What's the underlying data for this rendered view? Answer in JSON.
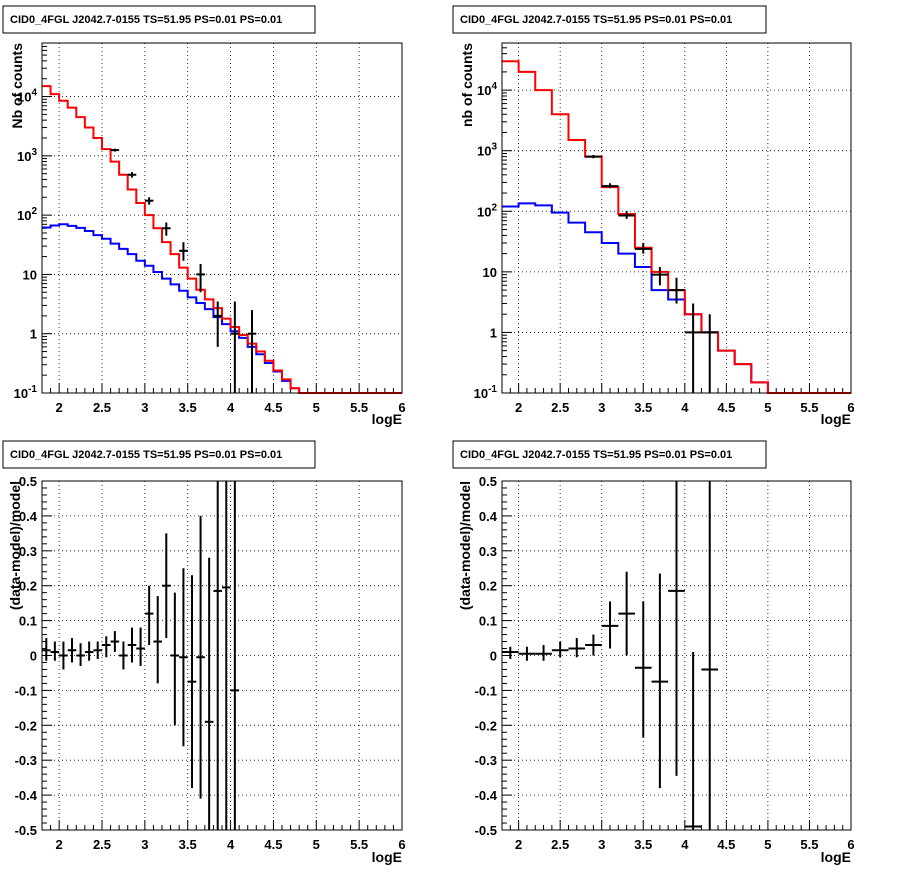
{
  "chart_data": [
    {
      "type": "step-histogram",
      "title": "CID0_4FGL J2042.7-0155 TS=51.95 PS=0.01 PS=0.01",
      "xlabel": "logE",
      "ylabel": "Nb of counts",
      "yscale": "log",
      "xlim": [
        1.8,
        6.0
      ],
      "ylim": [
        0.1,
        80000
      ],
      "grid": true,
      "x_ticks": [
        "2",
        "2.5",
        "3",
        "3.5",
        "4",
        "4.5",
        "5",
        "5.5",
        "6"
      ],
      "y_ticks": [
        "10^-1",
        "1",
        "10",
        "10^2",
        "10^3",
        "10^4"
      ],
      "series": [
        {
          "color": "#0000ff",
          "bin_edges": [
            1.8,
            1.9,
            2.0,
            2.1,
            2.2,
            2.3,
            2.4,
            2.5,
            2.6,
            2.7,
            2.8,
            2.9,
            3.0,
            3.1,
            3.2,
            3.3,
            3.4,
            3.5,
            3.6,
            3.7,
            3.8,
            3.9,
            4.0,
            4.1,
            4.2,
            4.3,
            4.4,
            4.5,
            4.6,
            4.7,
            4.8,
            4.9,
            5.0,
            5.1,
            5.2,
            5.3,
            5.4,
            5.5,
            5.6,
            5.7,
            5.8,
            5.9,
            6.0
          ],
          "values": [
            62,
            67,
            70,
            66,
            61,
            54,
            46,
            40,
            33,
            27,
            22,
            17,
            14,
            11,
            8.5,
            6.8,
            5.3,
            4.1,
            3.3,
            2.6,
            1.9,
            1.45,
            1.1,
            0.85,
            0.6,
            0.45,
            0.32,
            0.23,
            0.16,
            0.12,
            0.1,
            0.1,
            0.1,
            0.1,
            0.1,
            0.1,
            0.1,
            0.1,
            0.1,
            0.1,
            0.1,
            0.1
          ]
        },
        {
          "color": "#ff0000",
          "bin_edges": [
            1.8,
            1.9,
            2.0,
            2.1,
            2.2,
            2.3,
            2.4,
            2.5,
            2.6,
            2.7,
            2.8,
            2.9,
            3.0,
            3.1,
            3.2,
            3.3,
            3.4,
            3.5,
            3.6,
            3.7,
            3.8,
            3.9,
            4.0,
            4.1,
            4.2,
            4.3,
            4.4,
            4.5,
            4.6,
            4.7,
            4.8,
            4.9,
            5.0,
            5.1,
            5.2,
            5.3,
            5.4,
            5.5,
            5.6,
            5.7,
            5.8,
            5.9,
            6.0
          ],
          "values": [
            15000,
            11000,
            8500,
            6500,
            4500,
            3000,
            2000,
            1300,
            800,
            480,
            270,
            160,
            100,
            60,
            35,
            22,
            13,
            8.5,
            5.5,
            3.8,
            2.7,
            1.8,
            1.3,
            0.95,
            0.68,
            0.5,
            0.35,
            0.24,
            0.17,
            0.12,
            0.1,
            0.1,
            0.1,
            0.1,
            0.1,
            0.1,
            0.1,
            0.1,
            0.1,
            0.1,
            0.1,
            0.1
          ]
        }
      ],
      "points": {
        "color": "#000000",
        "x": [
          2.65,
          2.85,
          3.05,
          3.25,
          3.45,
          3.65,
          3.85,
          4.05,
          4.25
        ],
        "xerr": 0.05,
        "y": [
          1250,
          480,
          175,
          60,
          25,
          10,
          2,
          1,
          1
        ],
        "ylo": [
          1180,
          430,
          150,
          45,
          17,
          5,
          0.6,
          0.05,
          0.05
        ],
        "yhi": [
          1320,
          530,
          200,
          75,
          35,
          15,
          3.5,
          3.5,
          2.5
        ]
      }
    },
    {
      "type": "step-histogram",
      "title": "CID0_4FGL J2042.7-0155 TS=51.95 PS=0.01 PS=0.01",
      "xlabel": "logE",
      "ylabel": "nb of counts",
      "yscale": "log",
      "xlim": [
        1.8,
        6.0
      ],
      "ylim": [
        0.1,
        60000
      ],
      "grid": true,
      "x_ticks": [
        "2",
        "2.5",
        "3",
        "3.5",
        "4",
        "4.5",
        "5",
        "5.5",
        "6"
      ],
      "y_ticks": [
        "10^-1",
        "1",
        "10",
        "10^2",
        "10^3",
        "10^4"
      ],
      "series": [
        {
          "color": "#0000ff",
          "bin_edges": [
            1.8,
            2.0,
            2.2,
            2.4,
            2.6,
            2.8,
            3.0,
            3.2,
            3.4,
            3.6,
            3.8,
            4.0,
            4.2,
            4.4,
            4.6,
            4.8,
            5.0,
            5.2,
            5.4,
            5.6,
            5.8,
            6.0
          ],
          "values": [
            120,
            135,
            125,
            95,
            65,
            45,
            30,
            20,
            12,
            5,
            3.5,
            2,
            1,
            0.5,
            0.3,
            0.15,
            0.1,
            0.1,
            0.1,
            0.1,
            0.1
          ]
        },
        {
          "color": "#ff0000",
          "bin_edges": [
            1.8,
            2.0,
            2.2,
            2.4,
            2.6,
            2.8,
            3.0,
            3.2,
            3.4,
            3.6,
            3.8,
            4.0,
            4.2,
            4.4,
            4.6,
            4.8,
            5.0,
            5.2,
            5.4,
            5.6,
            5.8,
            6.0
          ],
          "values": [
            30000,
            20000,
            10000,
            4000,
            1500,
            800,
            250,
            90,
            25,
            10,
            5,
            2,
            1,
            0.5,
            0.3,
            0.15,
            0.1,
            0.1,
            0.1,
            0.1,
            0.1
          ]
        }
      ],
      "points": {
        "color": "#000000",
        "x": [
          2.9,
          3.1,
          3.3,
          3.5,
          3.7,
          3.9,
          4.1,
          4.3
        ],
        "xerr": 0.1,
        "y": [
          800,
          260,
          85,
          24,
          9,
          5,
          1,
          1
        ],
        "ylo": [
          750,
          240,
          75,
          20,
          6,
          3,
          0.05,
          0.05
        ],
        "yhi": [
          850,
          290,
          100,
          30,
          12,
          8,
          3,
          2
        ]
      }
    },
    {
      "type": "scatter-errorbar",
      "title": "CID0_4FGL J2042.7-0155 TS=51.95 PS=0.01 PS=0.01",
      "xlabel": "logE",
      "ylabel": "(data-model)/model",
      "xlim": [
        1.8,
        6.0
      ],
      "ylim": [
        -0.5,
        0.5
      ],
      "grid": true,
      "x_ticks": [
        "2",
        "2.5",
        "3",
        "3.5",
        "4",
        "4.5",
        "5",
        "5.5",
        "6"
      ],
      "y_ticks": [
        "-0.5",
        "-0.4",
        "-0.3",
        "-0.2",
        "-0.1",
        "0",
        "0.1",
        "0.2",
        "0.3",
        "0.4",
        "0.5"
      ],
      "points": {
        "color": "#000000",
        "xerr": 0.05,
        "x": [
          1.85,
          1.95,
          2.05,
          2.15,
          2.25,
          2.35,
          2.45,
          2.55,
          2.65,
          2.75,
          2.85,
          2.95,
          3.05,
          3.15,
          3.25,
          3.35,
          3.45,
          3.55,
          3.65,
          3.75,
          3.85,
          3.95,
          4.05
        ],
        "y": [
          0.015,
          0.01,
          0.0,
          0.015,
          0.0,
          0.01,
          0.015,
          0.03,
          0.04,
          0.0,
          0.03,
          0.02,
          0.12,
          0.04,
          0.2,
          0.0,
          -0.005,
          -0.075,
          -0.005,
          -0.19,
          0.185,
          0.195,
          -0.1
        ],
        "ylo": [
          -0.015,
          -0.015,
          -0.04,
          -0.02,
          -0.03,
          -0.015,
          -0.01,
          -0.005,
          0.01,
          -0.04,
          -0.02,
          -0.03,
          0.03,
          -0.08,
          0.05,
          -0.2,
          -0.26,
          -0.38,
          -0.41,
          -0.5,
          -0.5,
          -0.5,
          -0.5
        ],
        "yhi": [
          0.05,
          0.04,
          0.04,
          0.05,
          0.035,
          0.04,
          0.04,
          0.055,
          0.07,
          0.04,
          0.08,
          0.08,
          0.2,
          0.17,
          0.35,
          0.18,
          0.25,
          0.23,
          0.4,
          0.28,
          0.5,
          0.5,
          0.5
        ]
      }
    },
    {
      "type": "scatter-errorbar",
      "title": "CID0_4FGL J2042.7-0155 TS=51.95 PS=0.01 PS=0.01",
      "xlabel": "logE",
      "ylabel": "(data-model)/model",
      "xlim": [
        1.8,
        6.0
      ],
      "ylim": [
        -0.5,
        0.5
      ],
      "grid": true,
      "x_ticks": [
        "2",
        "2.5",
        "3",
        "3.5",
        "4",
        "4.5",
        "5",
        "5.5",
        "6"
      ],
      "y_ticks": [
        "-0.5",
        "-0.4",
        "-0.3",
        "-0.2",
        "-0.1",
        "0",
        "0.1",
        "0.2",
        "0.3",
        "0.4",
        "0.5"
      ],
      "points": {
        "color": "#000000",
        "xerr": 0.1,
        "x": [
          1.9,
          2.1,
          2.3,
          2.5,
          2.7,
          2.9,
          3.1,
          3.3,
          3.5,
          3.7,
          3.9,
          4.1,
          4.3
        ],
        "y": [
          0.01,
          0.005,
          0.005,
          0.015,
          0.02,
          0.03,
          0.085,
          0.12,
          -0.035,
          -0.075,
          0.185,
          -0.49,
          -0.04
        ],
        "ylo": [
          -0.01,
          -0.015,
          -0.015,
          -0.005,
          -0.005,
          0.0,
          0.02,
          0.0,
          -0.235,
          -0.38,
          -0.345,
          -0.5,
          -0.5
        ],
        "yhi": [
          0.025,
          0.025,
          0.03,
          0.04,
          0.05,
          0.06,
          0.155,
          0.24,
          0.155,
          0.235,
          0.5,
          0.01,
          0.5
        ]
      }
    }
  ]
}
